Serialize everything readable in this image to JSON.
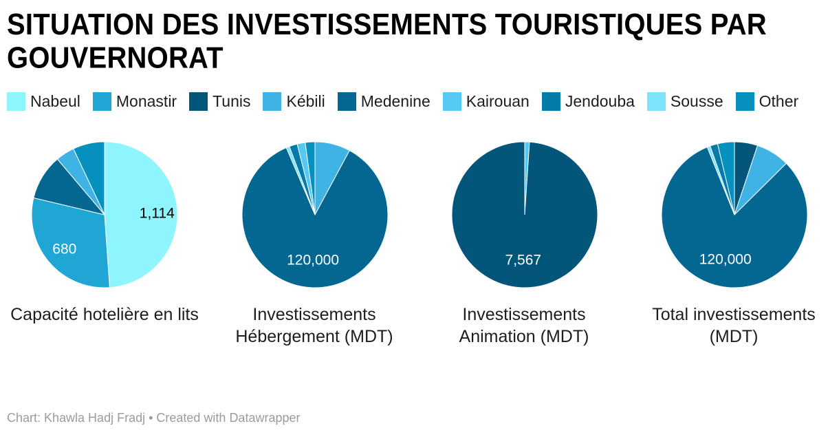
{
  "title": "SITUATION DES INVESTISSEMENTS TOURISTIQUES PAR GOUVERNORAT",
  "footer": {
    "text": "Chart: Khawla Hadj Fradj • Created with Datawrapper"
  },
  "legend": [
    {
      "label": "Nabeul",
      "color": "#8ef4fd"
    },
    {
      "label": "Monastir",
      "color": "#1fa6d4"
    },
    {
      "label": "Tunis",
      "color": "#03557a"
    },
    {
      "label": "Kébili",
      "color": "#3fb3e3"
    },
    {
      "label": "Medenine",
      "color": "#046792"
    },
    {
      "label": "Kairouan",
      "color": "#55c9f4"
    },
    {
      "label": "Jendouba",
      "color": "#047ba9"
    },
    {
      "label": "Sousse",
      "color": "#7ce3fb"
    },
    {
      "label": "Other",
      "color": "#0690bd"
    }
  ],
  "chart_data": [
    {
      "type": "pie",
      "title": "Capacité hotelière en lits",
      "slices": [
        {
          "category": "Nabeul",
          "value": 1114,
          "label": "1,114",
          "label_color": "#000000"
        },
        {
          "category": "Monastir",
          "value": 680,
          "label": "680",
          "label_color": "#ffffff"
        },
        {
          "category": "Medenine",
          "value": 230
        },
        {
          "category": "Kébili",
          "value": 95
        },
        {
          "category": "Other",
          "value": 160
        }
      ]
    },
    {
      "type": "pie",
      "title": "Investissements Hébergement (MDT)",
      "slices": [
        {
          "category": "Kébili",
          "value": 11000
        },
        {
          "category": "Medenine",
          "value": 120000,
          "label": "120,000",
          "label_color": "#ffffff"
        },
        {
          "category": "Sousse",
          "value": 1000
        },
        {
          "category": "Jendouba",
          "value": 2500
        },
        {
          "category": "Kairouan",
          "value": 2500
        },
        {
          "category": "Other",
          "value": 3000
        }
      ]
    },
    {
      "type": "pie",
      "title": "Investissements Animation (MDT)",
      "slices": [
        {
          "category": "Kairouan",
          "value": 80
        },
        {
          "category": "Tunis",
          "value": 7567,
          "label": "7,567",
          "label_color": "#ffffff"
        }
      ]
    },
    {
      "type": "pie",
      "title": "Total investissements (MDT)",
      "slices": [
        {
          "category": "Tunis",
          "value": 7567
        },
        {
          "category": "Kébili",
          "value": 11000
        },
        {
          "category": "Medenine",
          "value": 120000,
          "label": "120,000",
          "label_color": "#ffffff"
        },
        {
          "category": "Sousse",
          "value": 1000
        },
        {
          "category": "Jendouba",
          "value": 2500
        },
        {
          "category": "Other",
          "value": 5500
        }
      ]
    }
  ]
}
